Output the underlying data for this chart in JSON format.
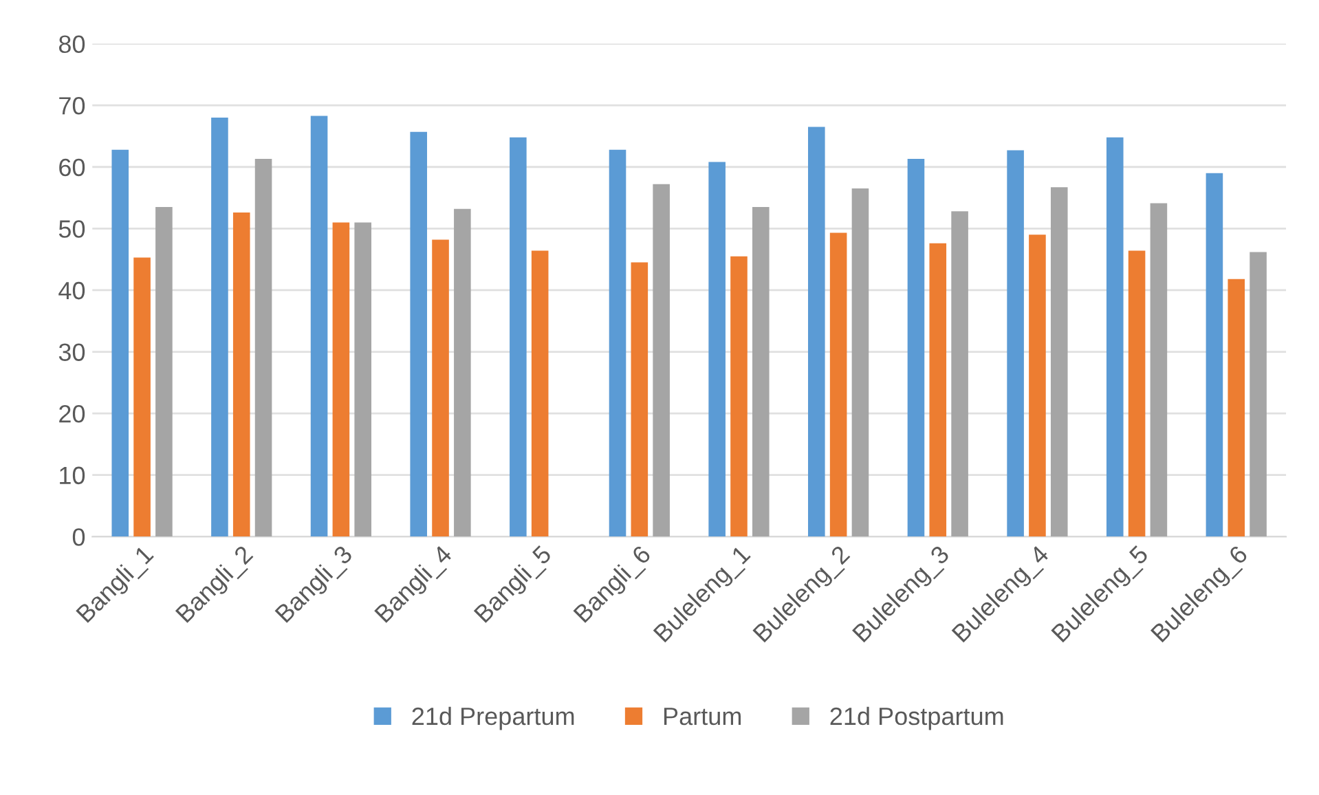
{
  "chart_data": {
    "type": "bar",
    "categories": [
      "Bangli_1",
      "Bangli_2",
      "Bangli_3",
      "Bangli_4",
      "Bangli_5",
      "Bangli_6",
      "Buleleng_1",
      "Buleleng_2",
      "Buleleng_3",
      "Buleleng_4",
      "Buleleng_5",
      "Buleleng_6"
    ],
    "series": [
      {
        "name": "21d Prepartum",
        "color": "#5b9bd5",
        "values": [
          62.8,
          68,
          68.3,
          65.7,
          64.8,
          62.8,
          60.8,
          66.5,
          61.3,
          62.7,
          64.8,
          59
        ]
      },
      {
        "name": "Partum",
        "color": "#ed7d31",
        "values": [
          45.3,
          52.6,
          51,
          48.2,
          46.4,
          44.5,
          45.5,
          49.3,
          47.6,
          49,
          46.4,
          41.8
        ]
      },
      {
        "name": "21d Postpartum",
        "color": "#a5a5a5",
        "values": [
          53.5,
          61.3,
          51,
          53.2,
          null,
          57.2,
          53.5,
          56.5,
          52.8,
          56.7,
          54.1,
          46.2
        ]
      }
    ],
    "ylim": [
      0,
      80
    ],
    "yticks": [
      0,
      10,
      20,
      30,
      40,
      50,
      60,
      70,
      80
    ],
    "grid": "y",
    "legend": "bottom"
  }
}
